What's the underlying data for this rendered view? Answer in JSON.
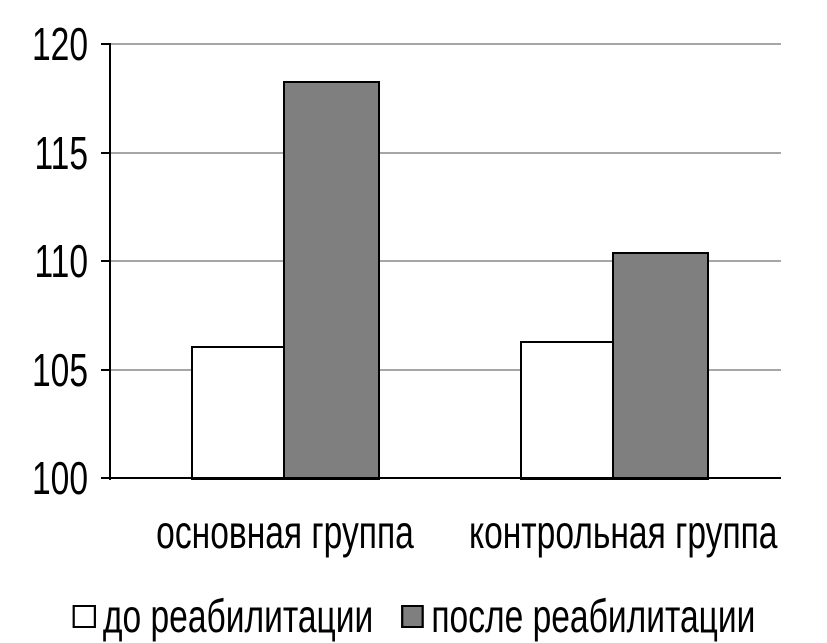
{
  "chart_data": {
    "type": "bar",
    "title": "",
    "xlabel": "",
    "ylabel": "",
    "categories": [
      "основная группа",
      "контрольная группа"
    ],
    "series": [
      {
        "name": "до реабилитации",
        "values": [
          106.1,
          106.3
        ],
        "fill": "#FFFFFF"
      },
      {
        "name": "после реабилитации",
        "values": [
          118.3,
          110.4
        ],
        "fill": "#7F7F7F"
      }
    ],
    "ylim": [
      100,
      120
    ],
    "yticks": [
      100,
      105,
      110,
      115,
      120
    ],
    "grid": true,
    "legend_position": "bottom",
    "colors": {
      "background": "#FFFFFF",
      "grid": "#A6A6A6",
      "axis": "#000000",
      "bar_border": "#000000",
      "text": "#000000"
    }
  }
}
